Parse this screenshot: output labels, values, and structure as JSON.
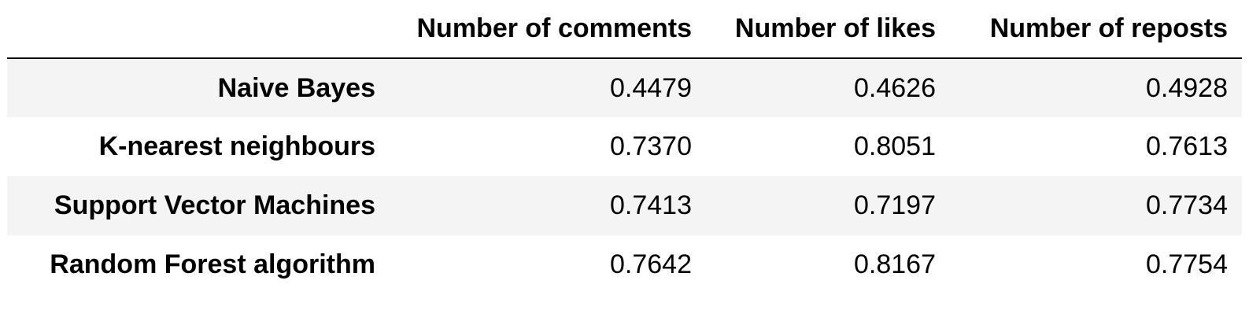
{
  "table": {
    "columns": [
      "",
      "Number of comments",
      "Number of likes",
      "Number of reposts"
    ],
    "rows": [
      {
        "label": "Naive Bayes",
        "values": [
          "0.4479",
          "0.4626",
          "0.4928"
        ]
      },
      {
        "label": "K-nearest neighbours",
        "values": [
          "0.7370",
          "0.8051",
          "0.7613"
        ]
      },
      {
        "label": "Support Vector Machines",
        "values": [
          "0.7413",
          "0.7197",
          "0.7734"
        ]
      },
      {
        "label": "Random Forest algorithm",
        "values": [
          "0.7642",
          "0.8167",
          "0.7754"
        ]
      }
    ],
    "colors": {
      "stripe": "#f4f4f4",
      "background": "#ffffff",
      "text": "#000000",
      "rule": "#000000"
    }
  }
}
